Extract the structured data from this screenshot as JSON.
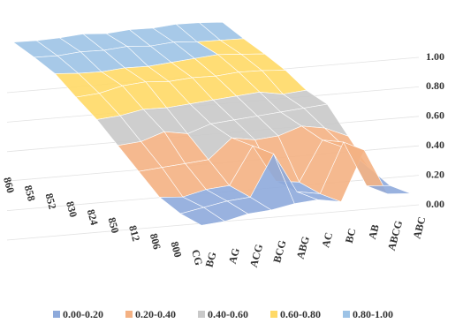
{
  "chart_data": {
    "type": "surface",
    "x": [
      "BG",
      "AG",
      "ACG",
      "BCG",
      "ABG",
      "AC",
      "BC",
      "AB",
      "ABCG",
      "ABC"
    ],
    "depth": [
      "CG",
      "800",
      "806",
      "812",
      "850",
      "824",
      "830",
      "852",
      "858",
      "860"
    ],
    "z": [
      [
        0.05,
        0.05,
        0.08,
        0.08,
        0.1,
        0.1,
        0.05,
        0.45,
        0.05,
        0.02
      ],
      [
        0.08,
        0.1,
        0.12,
        0.12,
        0.45,
        0.1,
        0.05,
        0.45,
        0.05,
        0.02
      ],
      [
        0.15,
        0.12,
        0.15,
        0.15,
        0.45,
        0.12,
        0.08,
        0.4,
        0.3,
        0.1
      ],
      [
        0.3,
        0.3,
        0.3,
        0.3,
        0.45,
        0.4,
        0.4,
        0.45,
        0.4,
        0.3
      ],
      [
        0.45,
        0.45,
        0.5,
        0.45,
        0.5,
        0.5,
        0.5,
        0.5,
        0.5,
        0.5
      ],
      [
        0.6,
        0.6,
        0.62,
        0.6,
        0.6,
        0.6,
        0.6,
        0.6,
        0.55,
        0.55
      ],
      [
        0.72,
        0.72,
        0.75,
        0.75,
        0.72,
        0.72,
        0.7,
        0.7,
        0.68,
        0.65
      ],
      [
        0.85,
        0.82,
        0.8,
        0.8,
        0.78,
        0.78,
        0.78,
        0.78,
        0.75,
        0.72
      ],
      [
        0.92,
        0.9,
        0.9,
        0.88,
        0.88,
        0.85,
        0.85,
        0.82,
        0.8,
        0.78
      ],
      [
        0.98,
        0.96,
        0.95,
        0.95,
        0.92,
        0.92,
        0.9,
        0.9,
        0.88,
        0.85
      ]
    ],
    "zlim": [
      0,
      1
    ],
    "zticks": [
      {
        "value": 0,
        "label": "0.00"
      },
      {
        "value": 0.2,
        "label": "0.20"
      },
      {
        "value": 0.4,
        "label": "0.40"
      },
      {
        "value": 0.6,
        "label": "0.60"
      },
      {
        "value": 0.8,
        "label": "0.80"
      },
      {
        "value": 1,
        "label": "1.00"
      }
    ],
    "bands": [
      {
        "label": "0.00-0.20",
        "from": 0,
        "to": 0.2,
        "color": "#8eaadb"
      },
      {
        "label": "0.20-0.40",
        "from": 0.2,
        "to": 0.4,
        "color": "#f4b183"
      },
      {
        "label": "0.40-0.60",
        "from": 0.4,
        "to": 0.6,
        "color": "#c9c9c9"
      },
      {
        "label": "0.60-0.80",
        "from": 0.6,
        "to": 0.8,
        "color": "#ffd966"
      },
      {
        "label": "0.80-1.00",
        "from": 0.8,
        "to": 1,
        "color": "#9dc3e6"
      }
    ]
  }
}
